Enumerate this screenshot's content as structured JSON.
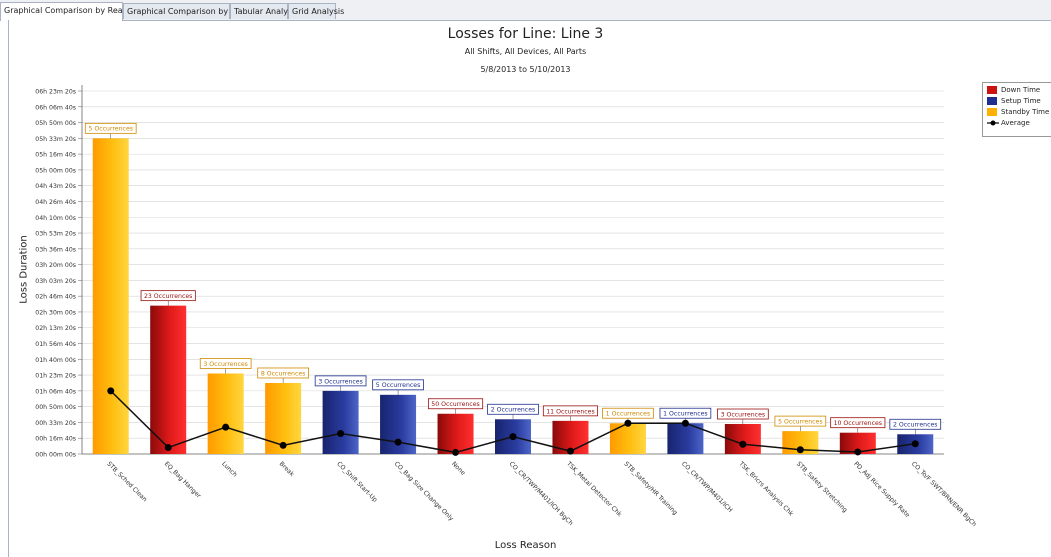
{
  "tabs": [
    {
      "label": "Graphical Comparison by Reason",
      "active": true
    },
    {
      "label": "Graphical Comparison by Device",
      "active": false
    },
    {
      "label": "Tabular Analysis",
      "active": false
    },
    {
      "label": "Grid Analysis",
      "active": false
    }
  ],
  "chart_data": {
    "type": "bar",
    "title": "Losses for Line: Line 3",
    "subtitle": "All Shifts, All Devices, All Parts",
    "date_range": "5/8/2013 to 5/10/2013",
    "xlabel": "Loss Reason",
    "ylabel": "Loss Duration",
    "y_ticks": [
      "00h 00m 00s",
      "00h 16m 40s",
      "00h 33m 20s",
      "00h 50m 00s",
      "01h 06m 40s",
      "01h 23m 20s",
      "01h 40m 00s",
      "01h 56m 40s",
      "02h 13m 20s",
      "02h 30m 00s",
      "02h 46m 40s",
      "03h 03m 20s",
      "03h 20m 00s",
      "03h 36m 40s",
      "03h 53m 20s",
      "04h 10m 00s",
      "04h 26m 40s",
      "04h 43m 20s",
      "05h 00m 00s",
      "05h 16m 40s",
      "05h 33m 20s",
      "05h 50m 00s",
      "06h 06m 40s",
      "06h 23m 20s"
    ],
    "y_tick_step_seconds": 1000,
    "ylim_seconds": [
      0,
      23000
    ],
    "grid": true,
    "legend_position": "top-right",
    "categories": [
      "STB_Sched Clean",
      "EQ_Bag Hanger",
      "Lunch",
      "Break",
      "CO_Shift Start-Up",
      "CO_Bag Size Change Only",
      "None",
      "CO_CR/TWP/M401/ICH BgCh",
      "TSK_Metal Detector Chk",
      "STB_Safety/HR Training",
      "CO_CR/TWP/M401/ICH",
      "TSK_Bricrs Analysis Chk",
      "STB_Safety Stretching",
      "PD_Adj Rice Supply Rate",
      "CO_To/F SWT/BRN/ENR BgCh"
    ],
    "bar_kind": [
      "Standby Time",
      "Down Time",
      "Standby Time",
      "Standby Time",
      "Setup Time",
      "Setup Time",
      "Down Time",
      "Setup Time",
      "Down Time",
      "Standby Time",
      "Setup Time",
      "Down Time",
      "Standby Time",
      "Down Time",
      "Setup Time"
    ],
    "values_seconds": [
      20000,
      9400,
      5100,
      4500,
      4000,
      3750,
      2550,
      2200,
      2100,
      1950,
      1950,
      1900,
      1450,
      1350,
      1250
    ],
    "occurrence_labels": [
      "5 Occurrences",
      "23 Occurrences",
      "3 Occurrences",
      "8 Occurrences",
      "3 Occurrences",
      "5 Occurrences",
      "50 Occurrences",
      "2 Occurrences",
      "11 Occurrences",
      "1 Occurrences",
      "1 Occurrences",
      "3 Occurrences",
      "5 Occurrences",
      "10 Occurrences",
      "2 Occurrences"
    ],
    "average_seconds": [
      4000,
      410,
      1700,
      550,
      1300,
      750,
      100,
      1100,
      180,
      1950,
      1950,
      620,
      270,
      130,
      650
    ],
    "legend": [
      {
        "name": "Down Time",
        "color": "#cc1111"
      },
      {
        "name": "Setup Time",
        "color": "#1f2f8f"
      },
      {
        "name": "Standby Time",
        "color": "#ffb000"
      },
      {
        "name": "Average",
        "color": "#000000"
      }
    ]
  }
}
